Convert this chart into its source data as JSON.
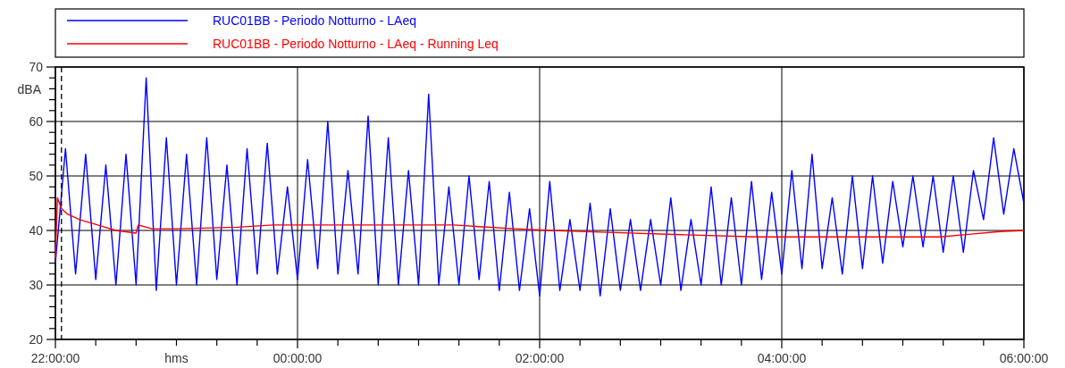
{
  "chart_data": {
    "type": "line",
    "xlabel": "hms",
    "ylabel": "dBA",
    "legend": "top",
    "grid": true,
    "line_style": "solid",
    "marker": "none",
    "xlim": [
      "2000-01-01T22:00",
      "2000-01-02T06:00"
    ],
    "xticks": [
      {
        "value": "2000-01-01T22:00",
        "label": "22:00:00"
      },
      {
        "value": "2000-01-01T22:20",
        "label": null
      },
      {
        "value": "2000-01-01T22:40",
        "label": null
      },
      {
        "value": "2000-01-01T23:00",
        "label": null
      },
      {
        "value": "2000-01-01T23:20",
        "label": null
      },
      {
        "value": "2000-01-01T23:40",
        "label": null
      },
      {
        "value": "2000-01-02T00:00",
        "label": "00:00:00"
      },
      {
        "value": "2000-01-02T00:20",
        "label": null
      },
      {
        "value": "2000-01-02T00:40",
        "label": null
      },
      {
        "value": "2000-01-02T01:00",
        "label": null
      },
      {
        "value": "2000-01-02T01:20",
        "label": null
      },
      {
        "value": "2000-01-02T01:40",
        "label": null
      },
      {
        "value": "2000-01-02T02:00",
        "label": "02:00:00"
      },
      {
        "value": "2000-01-02T02:20",
        "label": null
      },
      {
        "value": "2000-01-02T02:40",
        "label": null
      },
      {
        "value": "2000-01-02T03:00",
        "label": null
      },
      {
        "value": "2000-01-02T03:20",
        "label": null
      },
      {
        "value": "2000-01-02T03:40",
        "label": null
      },
      {
        "value": "2000-01-02T04:00",
        "label": "04:00:00"
      },
      {
        "value": "2000-01-02T04:20",
        "label": null
      },
      {
        "value": "2000-01-02T04:40",
        "label": null
      },
      {
        "value": "2000-01-02T05:00",
        "label": null
      },
      {
        "value": "2000-01-02T05:20",
        "label": null
      },
      {
        "value": "2000-01-02T05:40",
        "label": null
      },
      {
        "value": "2000-01-02T06:00",
        "label": "06:00:00"
      }
    ],
    "ylim": [
      20,
      70
    ],
    "yticks": [
      20,
      {
        "value": 22,
        "label": null
      },
      {
        "value": 24,
        "label": null
      },
      {
        "value": 26,
        "label": null
      },
      {
        "value": 28,
        "label": null
      },
      30,
      {
        "value": 32,
        "label": null
      },
      {
        "value": 34,
        "label": null
      },
      {
        "value": 36,
        "label": null
      },
      {
        "value": 38,
        "label": null
      },
      40,
      {
        "value": 42,
        "label": null
      },
      {
        "value": 44,
        "label": null
      },
      {
        "value": 46,
        "label": null
      },
      {
        "value": 48,
        "label": null
      },
      50,
      {
        "value": 52,
        "label": null
      },
      {
        "value": 54,
        "label": null
      },
      {
        "value": 56,
        "label": null
      },
      {
        "value": 58,
        "label": null
      },
      60,
      {
        "value": 62,
        "label": null
      },
      {
        "value": 64,
        "label": null
      },
      {
        "value": 66,
        "label": null
      },
      {
        "value": 68,
        "label": null
      },
      70
    ],
    "ref_lines": [
      {
        "axis": "x",
        "value": "2000-01-01T22:03",
        "color": "#000000",
        "line_style": "dashed"
      }
    ],
    "series": [
      {
        "name": "RUC01BB - Periodo Notturno - LAeq",
        "color": "#0000ff",
        "x": [
          "2000-01-01T22:00",
          "2000-01-01T22:05",
          "2000-01-01T22:10",
          "2000-01-01T22:15",
          "2000-01-01T22:20",
          "2000-01-01T22:25",
          "2000-01-01T22:30",
          "2000-01-01T22:35",
          "2000-01-01T22:40",
          "2000-01-01T22:45",
          "2000-01-01T22:50",
          "2000-01-01T22:55",
          "2000-01-01T23:00",
          "2000-01-01T23:05",
          "2000-01-01T23:10",
          "2000-01-01T23:15",
          "2000-01-01T23:20",
          "2000-01-01T23:25",
          "2000-01-01T23:30",
          "2000-01-01T23:35",
          "2000-01-01T23:40",
          "2000-01-01T23:45",
          "2000-01-01T23:50",
          "2000-01-01T23:55",
          "2000-01-02T00:00",
          "2000-01-02T00:05",
          "2000-01-02T00:10",
          "2000-01-02T00:15",
          "2000-01-02T00:20",
          "2000-01-02T00:25",
          "2000-01-02T00:30",
          "2000-01-02T00:35",
          "2000-01-02T00:40",
          "2000-01-02T00:45",
          "2000-01-02T00:50",
          "2000-01-02T00:55",
          "2000-01-02T01:00",
          "2000-01-02T01:05",
          "2000-01-02T01:10",
          "2000-01-02T01:15",
          "2000-01-02T01:20",
          "2000-01-02T01:25",
          "2000-01-02T01:30",
          "2000-01-02T01:35",
          "2000-01-02T01:40",
          "2000-01-02T01:45",
          "2000-01-02T01:50",
          "2000-01-02T01:55",
          "2000-01-02T02:00",
          "2000-01-02T02:05",
          "2000-01-02T02:10",
          "2000-01-02T02:15",
          "2000-01-02T02:20",
          "2000-01-02T02:25",
          "2000-01-02T02:30",
          "2000-01-02T02:35",
          "2000-01-02T02:40",
          "2000-01-02T02:45",
          "2000-01-02T02:50",
          "2000-01-02T02:55",
          "2000-01-02T03:00",
          "2000-01-02T03:05",
          "2000-01-02T03:10",
          "2000-01-02T03:15",
          "2000-01-02T03:20",
          "2000-01-02T03:25",
          "2000-01-02T03:30",
          "2000-01-02T03:35",
          "2000-01-02T03:40",
          "2000-01-02T03:45",
          "2000-01-02T03:50",
          "2000-01-02T03:55",
          "2000-01-02T04:00",
          "2000-01-02T04:05",
          "2000-01-02T04:10",
          "2000-01-02T04:15",
          "2000-01-02T04:20",
          "2000-01-02T04:25",
          "2000-01-02T04:30",
          "2000-01-02T04:35",
          "2000-01-02T04:40",
          "2000-01-02T04:45",
          "2000-01-02T04:50",
          "2000-01-02T04:55",
          "2000-01-02T05:00",
          "2000-01-02T05:05",
          "2000-01-02T05:10",
          "2000-01-02T05:15",
          "2000-01-02T05:20",
          "2000-01-02T05:25",
          "2000-01-02T05:30",
          "2000-01-02T05:35",
          "2000-01-02T05:40",
          "2000-01-02T05:45",
          "2000-01-02T05:50",
          "2000-01-02T05:55",
          "2000-01-02T06:00"
        ],
        "values": [
          34,
          55,
          32,
          54,
          31,
          52,
          30,
          54,
          30,
          68,
          29,
          57,
          30,
          54,
          30,
          57,
          31,
          52,
          30,
          55,
          32,
          56,
          32,
          48,
          31,
          53,
          33,
          60,
          32,
          51,
          32,
          61,
          30,
          57,
          30,
          51,
          30,
          65,
          30,
          48,
          30,
          50,
          31,
          49,
          29,
          47,
          29,
          44,
          28,
          49,
          29,
          42,
          29,
          45,
          28,
          44,
          29,
          42,
          29,
          42,
          30,
          46,
          29,
          42,
          30,
          48,
          30,
          46,
          30,
          49,
          31,
          47,
          32,
          51,
          33,
          54,
          33,
          46,
          32,
          50,
          33,
          50,
          34,
          49,
          37,
          50,
          37,
          50,
          36,
          50,
          36,
          51,
          42,
          57,
          43,
          55,
          45
        ]
      },
      {
        "name": "RUC01BB - Periodo Notturno - LAeq - Running Leq",
        "color": "#ff0000",
        "x": [
          "2000-01-01T22:00",
          "2000-01-01T22:01",
          "2000-01-01T22:03",
          "2000-01-01T22:06",
          "2000-01-01T22:12",
          "2000-01-01T22:21",
          "2000-01-01T22:30",
          "2000-01-01T22:40",
          "2000-01-01T22:41",
          "2000-01-01T22:48",
          "2000-01-01T23:00",
          "2000-01-01T23:30",
          "2000-01-01T23:48",
          "2000-01-02T00:30",
          "2000-01-02T01:18",
          "2000-01-02T01:30",
          "2000-01-02T01:48",
          "2000-01-02T02:06",
          "2000-01-02T02:30",
          "2000-01-02T03:12",
          "2000-01-02T03:48",
          "2000-01-02T04:30",
          "2000-01-02T05:18",
          "2000-01-02T05:30",
          "2000-01-02T05:48",
          "2000-01-02T06:00"
        ],
        "values": [
          35,
          46,
          44,
          43,
          42,
          41,
          40,
          39.5,
          41,
          40.3,
          40.3,
          40.6,
          41,
          41,
          41,
          40.7,
          40.3,
          40,
          39.7,
          39.2,
          38.8,
          38.8,
          38.8,
          39.2,
          39.8,
          40
        ]
      }
    ]
  }
}
